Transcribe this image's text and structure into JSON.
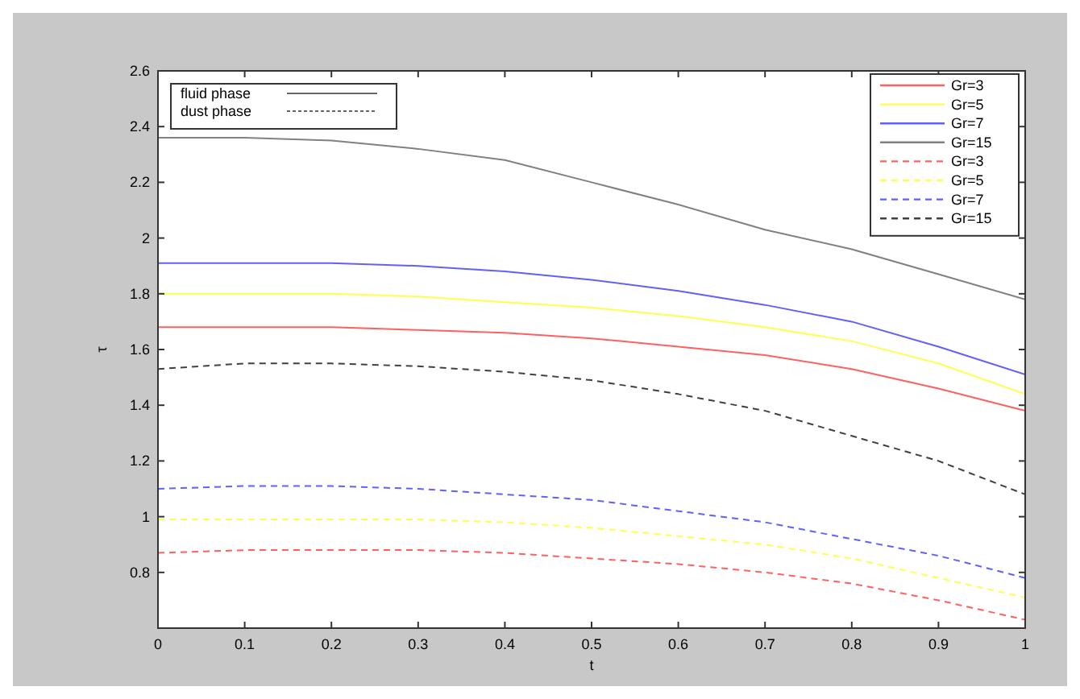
{
  "chart_data": {
    "type": "line",
    "xlabel": "t",
    "ylabel": "τ",
    "x": [
      0,
      0.1,
      0.2,
      0.3,
      0.4,
      0.5,
      0.6,
      0.7,
      0.8,
      0.9,
      1
    ],
    "xlim": [
      0,
      1
    ],
    "xticks": [
      0,
      0.1,
      0.2,
      0.3,
      0.4,
      0.5,
      0.6,
      0.7,
      0.8,
      0.9,
      1
    ],
    "ylim": [
      0.6,
      2.6
    ],
    "yticks": [
      0.8,
      1,
      1.2,
      1.4,
      1.6,
      1.8,
      2,
      2.2,
      2.4,
      2.6
    ],
    "grid": false,
    "legend": "top right",
    "marker": "none",
    "annotations": [
      "fluid phase",
      "dust phase"
    ],
    "series": [
      {
        "name": "Gr=3",
        "color": "#ff6060",
        "line_style": "solid",
        "values": [
          1.68,
          1.68,
          1.68,
          1.67,
          1.66,
          1.64,
          1.61,
          1.58,
          1.53,
          1.46,
          1.38
        ]
      },
      {
        "name": "Gr=5",
        "color": "#ffff50",
        "line_style": "solid",
        "values": [
          1.8,
          1.8,
          1.8,
          1.79,
          1.77,
          1.75,
          1.72,
          1.68,
          1.63,
          1.55,
          1.44
        ]
      },
      {
        "name": "Gr=7",
        "color": "#6060ff",
        "line_style": "solid",
        "values": [
          1.91,
          1.91,
          1.91,
          1.9,
          1.88,
          1.85,
          1.81,
          1.76,
          1.7,
          1.61,
          1.51
        ]
      },
      {
        "name": "Gr=15",
        "color": "#808080",
        "line_style": "solid",
        "values": [
          2.36,
          2.36,
          2.35,
          2.32,
          2.28,
          2.2,
          2.12,
          2.03,
          1.96,
          1.87,
          1.78
        ]
      },
      {
        "name": "Gr=3",
        "color": "#ff6060",
        "line_style": "dashed",
        "values": [
          0.87,
          0.88,
          0.88,
          0.88,
          0.87,
          0.85,
          0.83,
          0.8,
          0.76,
          0.7,
          0.63
        ]
      },
      {
        "name": "Gr=5",
        "color": "#ffff50",
        "line_style": "dashed",
        "values": [
          0.99,
          0.99,
          0.99,
          0.99,
          0.98,
          0.96,
          0.93,
          0.9,
          0.85,
          0.78,
          0.71
        ]
      },
      {
        "name": "Gr=7",
        "color": "#6060ff",
        "line_style": "dashed",
        "values": [
          1.1,
          1.11,
          1.11,
          1.1,
          1.08,
          1.06,
          1.02,
          0.98,
          0.92,
          0.86,
          0.78
        ]
      },
      {
        "name": "Gr=15",
        "color": "#404040",
        "line_style": "dashed",
        "values": [
          1.53,
          1.55,
          1.55,
          1.54,
          1.52,
          1.49,
          1.44,
          1.38,
          1.29,
          1.2,
          1.08
        ]
      }
    ]
  }
}
